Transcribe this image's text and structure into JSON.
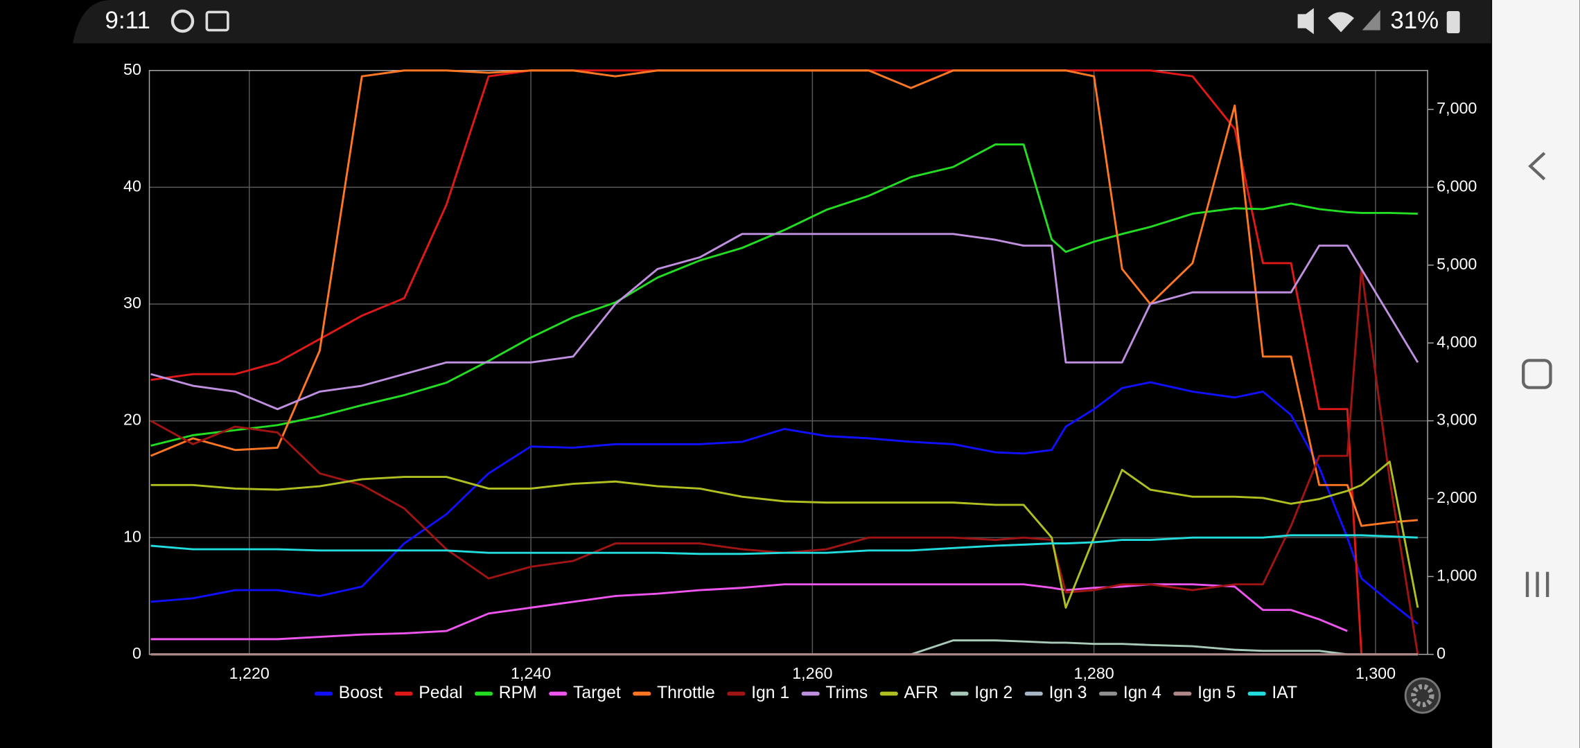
{
  "status_bar": {
    "time": "9:11",
    "battery": "31%"
  },
  "chart_data": {
    "type": "line",
    "x": [
      1213,
      1216,
      1219,
      1222,
      1225,
      1228,
      1231,
      1234,
      1237,
      1240,
      1243,
      1246,
      1249,
      1252,
      1255,
      1258,
      1261,
      1264,
      1267,
      1270,
      1273,
      1275,
      1277,
      1278,
      1280,
      1282,
      1284,
      1287,
      1290,
      1292,
      1294,
      1296,
      1298,
      1299,
      1301,
      1303
    ],
    "series": [
      {
        "name": "Boost",
        "color": "#1010ff",
        "values": [
          4.5,
          4.8,
          5.5,
          5.5,
          5,
          5.8,
          9.5,
          12,
          15.5,
          17.8,
          17.7,
          18,
          18,
          18,
          18.2,
          19.3,
          18.7,
          18.5,
          18.2,
          18,
          17.3,
          17.2,
          17.5,
          19.5,
          21,
          22.8,
          23.3,
          22.5,
          22,
          22.5,
          20.5,
          16,
          10,
          6.5,
          4.5,
          2.6
        ]
      },
      {
        "name": "Pedal",
        "color": "#e01818",
        "values": [
          23.5,
          24,
          24,
          25,
          27,
          29,
          30.5,
          38.5,
          49.5,
          50,
          50,
          50,
          50,
          50,
          50,
          50,
          50,
          50,
          50,
          50,
          50,
          50,
          50,
          50,
          50,
          50,
          50,
          49.5,
          45,
          33.5,
          33.5,
          21,
          21,
          0,
          0,
          0
        ]
      },
      {
        "name": "RPM",
        "color": "#22dd22",
        "axis": "y2",
        "values": [
          2680,
          2815,
          2880,
          2945,
          3060,
          3200,
          3330,
          3490,
          3770,
          4070,
          4330,
          4520,
          4840,
          5060,
          5220,
          5450,
          5710,
          5890,
          6130,
          6260,
          6550,
          6550,
          5330,
          5170,
          5300,
          5400,
          5490,
          5660,
          5730,
          5720,
          5790,
          5720,
          5680,
          5670,
          5670,
          5660
        ]
      },
      {
        "name": "Target",
        "color": "#ee55ee",
        "values": [
          1.3,
          1.3,
          1.3,
          1.3,
          1.5,
          1.7,
          1.8,
          2,
          3.5,
          4,
          4.5,
          5,
          5.2,
          5.5,
          5.7,
          6,
          6,
          6,
          6,
          6,
          6,
          6,
          5.7,
          5.5,
          5.7,
          5.8,
          6,
          6,
          5.8,
          3.8,
          3.8,
          3,
          2,
          null,
          null,
          null
        ]
      },
      {
        "name": "Throttle",
        "color": "#ff7722",
        "values": [
          17,
          18.5,
          17.5,
          17.7,
          26,
          49.5,
          50,
          50,
          49.8,
          50,
          50,
          49.5,
          50,
          50,
          50,
          50,
          50,
          50,
          48.5,
          50,
          50,
          50,
          50,
          50,
          49.5,
          33,
          30,
          33.5,
          47,
          25.5,
          25.5,
          14.5,
          14.5,
          11,
          11.3,
          11.5
        ]
      },
      {
        "name": "Ign 1",
        "color": "#a01414",
        "values": [
          20,
          18,
          19.5,
          19,
          15.5,
          14.5,
          12.5,
          9,
          6.5,
          7.5,
          8,
          9.5,
          9.5,
          9.5,
          9,
          8.7,
          9,
          10,
          10,
          10,
          9.8,
          10,
          9.8,
          5.3,
          5.5,
          6,
          6,
          5.5,
          6,
          6,
          11,
          17,
          17,
          33,
          15,
          0
        ]
      },
      {
        "name": "Trims",
        "color": "#c090e0",
        "values": [
          24,
          23,
          22.5,
          21,
          22.5,
          23,
          24,
          25,
          25,
          25,
          25.5,
          30,
          33,
          34,
          36,
          36,
          36,
          36,
          36,
          36,
          35.5,
          35,
          35,
          25,
          25,
          25,
          30,
          31,
          31,
          31,
          31,
          35,
          35,
          33,
          29,
          25
        ]
      },
      {
        "name": "AFR",
        "color": "#b0c020",
        "values": [
          14.5,
          14.5,
          14.2,
          14.1,
          14.4,
          15,
          15.2,
          15.2,
          14.2,
          14.2,
          14.6,
          14.8,
          14.4,
          14.2,
          13.5,
          13.1,
          13,
          13,
          13,
          13,
          12.8,
          12.8,
          10,
          4,
          10,
          15.8,
          14.1,
          13.5,
          13.5,
          13.4,
          12.9,
          13.3,
          14,
          14.5,
          16.5,
          4
        ]
      },
      {
        "name": "Ign 2",
        "color": "#a8c8b8",
        "values": [
          0,
          0,
          0,
          0,
          0,
          0,
          0,
          0,
          0,
          0,
          0,
          0,
          0,
          0,
          0,
          0,
          0,
          0,
          0,
          1.2,
          1.2,
          1.1,
          1,
          1,
          0.9,
          0.9,
          0.8,
          0.7,
          0.4,
          0.3,
          0.3,
          0.3,
          0,
          0,
          0,
          0
        ]
      },
      {
        "name": "Ign 3",
        "color": "#a8b8c8",
        "values": [
          0,
          0,
          0,
          0,
          0,
          0,
          0,
          0,
          0,
          0,
          0,
          0,
          0,
          0,
          0,
          0,
          0,
          0,
          0,
          0,
          0,
          0,
          0,
          0,
          0,
          0,
          0,
          0,
          0,
          0,
          0,
          0,
          0,
          0,
          0,
          0
        ]
      },
      {
        "name": "Ign 4",
        "color": "#909090",
        "values": [
          0,
          0,
          0,
          0,
          0,
          0,
          0,
          0,
          0,
          0,
          0,
          0,
          0,
          0,
          0,
          0,
          0,
          0,
          0,
          0,
          0,
          0,
          0,
          0,
          0,
          0,
          0,
          0,
          0,
          0,
          0,
          0,
          0,
          0,
          0,
          0
        ]
      },
      {
        "name": "Ign 5",
        "color": "#b08888",
        "values": [
          0,
          0,
          0,
          0,
          0,
          0,
          0,
          0,
          0,
          0,
          0,
          0,
          0,
          0,
          0,
          0,
          0,
          0,
          0,
          0,
          0,
          0,
          0,
          0,
          0,
          0,
          0,
          0,
          0,
          0,
          0,
          0,
          0,
          0,
          0,
          0
        ]
      },
      {
        "name": "IAT",
        "color": "#22dddd",
        "values": [
          9.3,
          9,
          9,
          9,
          8.9,
          8.9,
          8.9,
          8.9,
          8.7,
          8.7,
          8.7,
          8.7,
          8.7,
          8.6,
          8.6,
          8.7,
          8.7,
          8.9,
          8.9,
          9.1,
          9.3,
          9.4,
          9.5,
          9.5,
          9.6,
          9.8,
          9.8,
          10,
          10,
          10,
          10.2,
          10.2,
          10.2,
          10.2,
          10.1,
          10
        ]
      }
    ],
    "xlim": [
      1212.9,
      1303.7
    ],
    "xticks": [
      {
        "value": 1220,
        "label": "1,220"
      },
      {
        "value": 1240,
        "label": "1,240"
      },
      {
        "value": 1260,
        "label": "1,260"
      },
      {
        "value": 1280,
        "label": "1,280"
      },
      {
        "value": 1300,
        "label": "1,300"
      }
    ],
    "ylim": [
      0,
      50
    ],
    "yticks": [
      0,
      10,
      20,
      30,
      40,
      50
    ],
    "y2lim": [
      0,
      7500
    ],
    "y2ticks": [
      0,
      {
        "value": 1000,
        "label": "1,000"
      },
      {
        "value": 2000,
        "label": "2,000"
      },
      {
        "value": 3000,
        "label": "3,000"
      },
      {
        "value": 4000,
        "label": "4,000"
      },
      {
        "value": 5000,
        "label": "5,000"
      },
      {
        "value": 6000,
        "label": "6,000"
      },
      {
        "value": 7000,
        "label": "7,000"
      }
    ],
    "grid": true,
    "legend": "bottom"
  }
}
